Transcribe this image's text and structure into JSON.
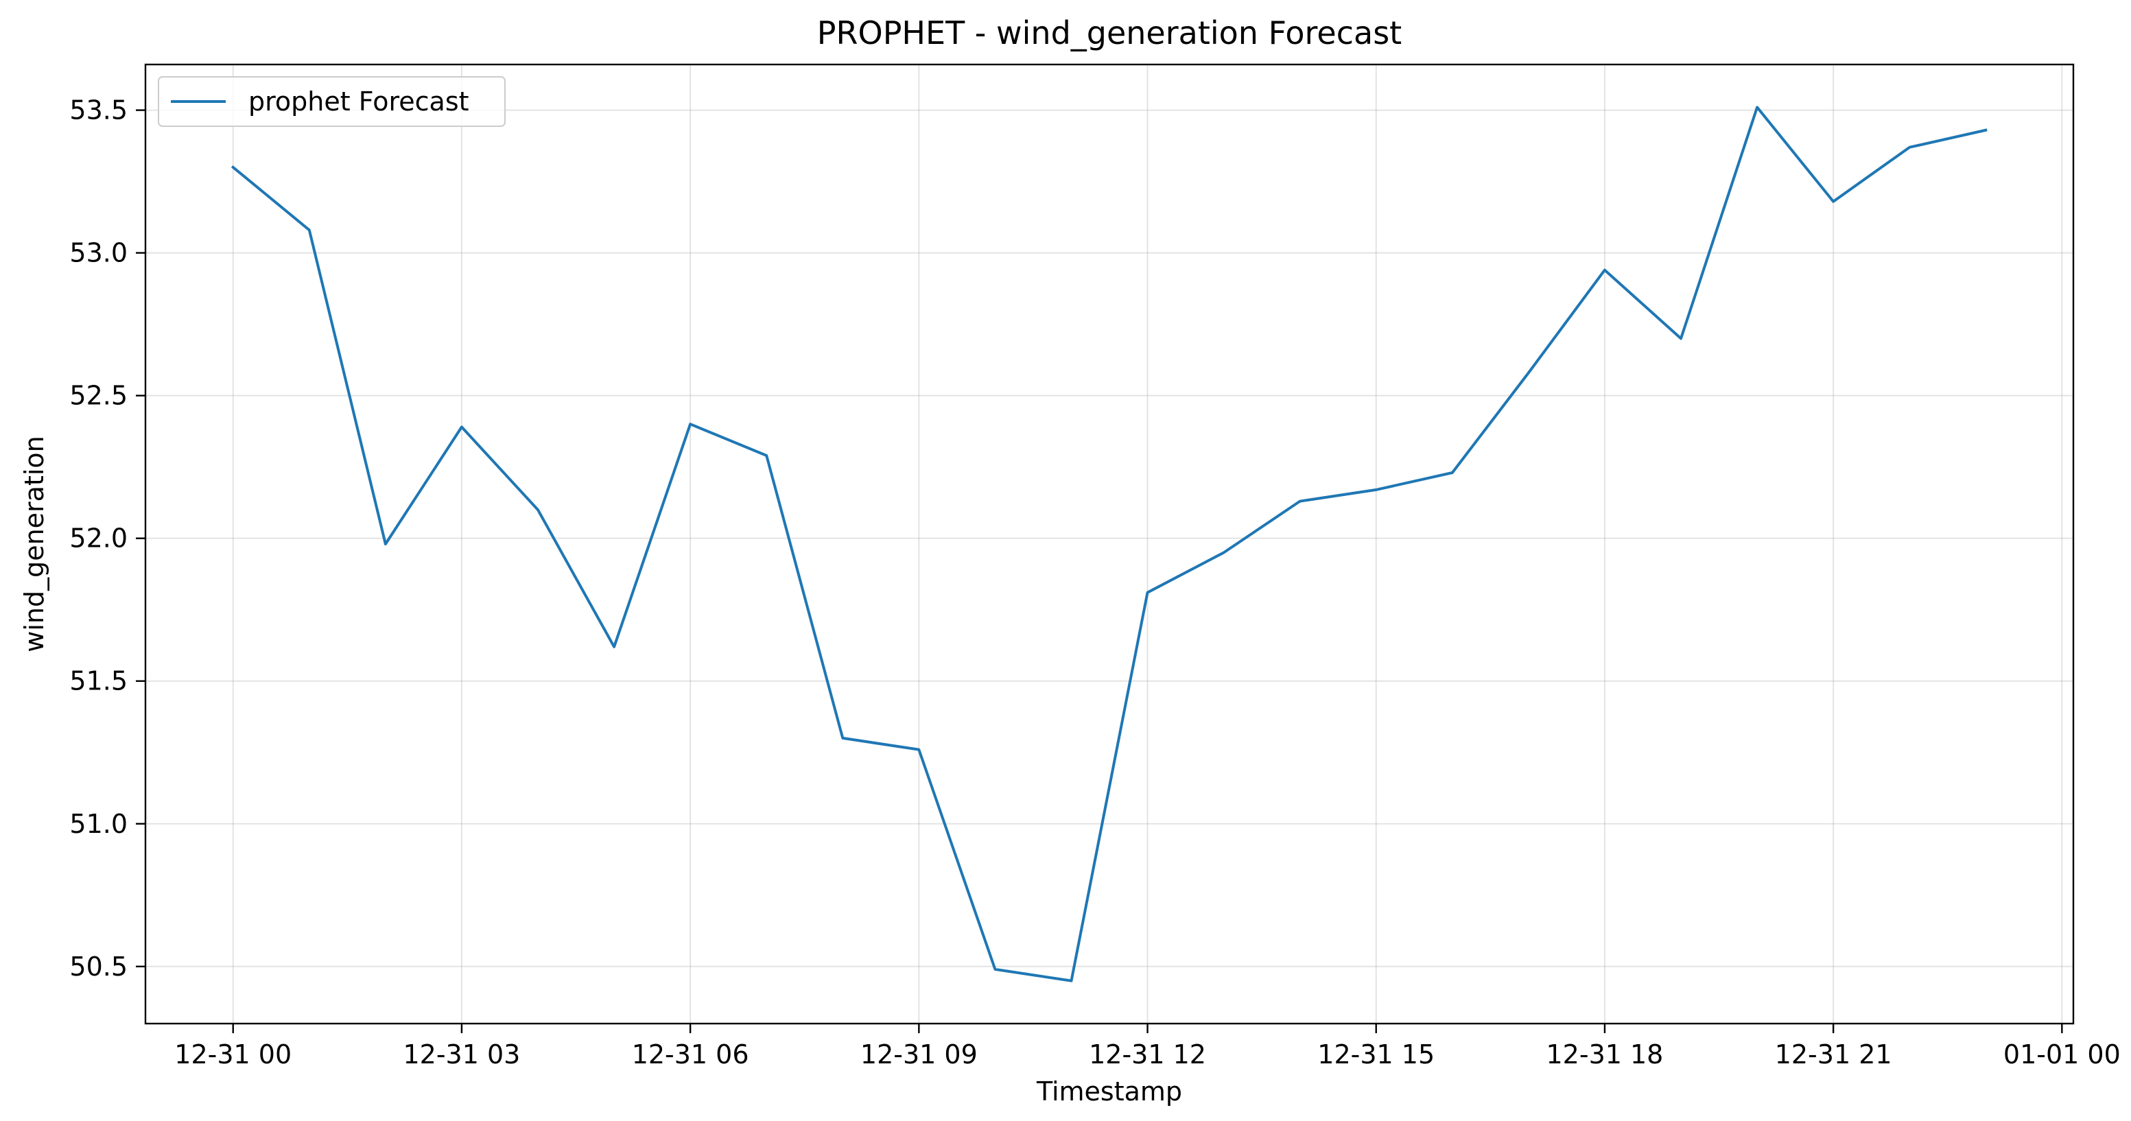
{
  "chart_data": {
    "type": "line",
    "title": "PROPHET - wind_generation Forecast",
    "xlabel": "Timestamp",
    "ylabel": "wind_generation",
    "x_ticks": [
      "12-31 00",
      "12-31 03",
      "12-31 06",
      "12-31 09",
      "12-31 12",
      "12-31 15",
      "12-31 18",
      "12-31 21",
      "01-01 00"
    ],
    "y_ticks": [
      "50.5",
      "51.0",
      "51.5",
      "52.0",
      "52.5",
      "53.0",
      "53.5"
    ],
    "xlim_hours": [
      -1.15,
      24.15
    ],
    "ylim": [
      50.3,
      53.66
    ],
    "grid": true,
    "legend_position": "upper-left",
    "series": [
      {
        "name": "prophet Forecast",
        "color": "#1f77b4",
        "x_hours": [
          0,
          1,
          2,
          3,
          4,
          5,
          6,
          7,
          8,
          9,
          10,
          11,
          12,
          13,
          14,
          15,
          16,
          17,
          18,
          19,
          20,
          21,
          22,
          23
        ],
        "values": [
          53.3,
          53.08,
          51.98,
          52.39,
          52.1,
          51.62,
          52.4,
          52.29,
          51.3,
          51.26,
          50.49,
          50.45,
          51.81,
          51.95,
          52.13,
          52.17,
          52.23,
          52.58,
          52.94,
          52.7,
          53.51,
          53.18,
          53.37,
          53.43
        ]
      }
    ]
  }
}
